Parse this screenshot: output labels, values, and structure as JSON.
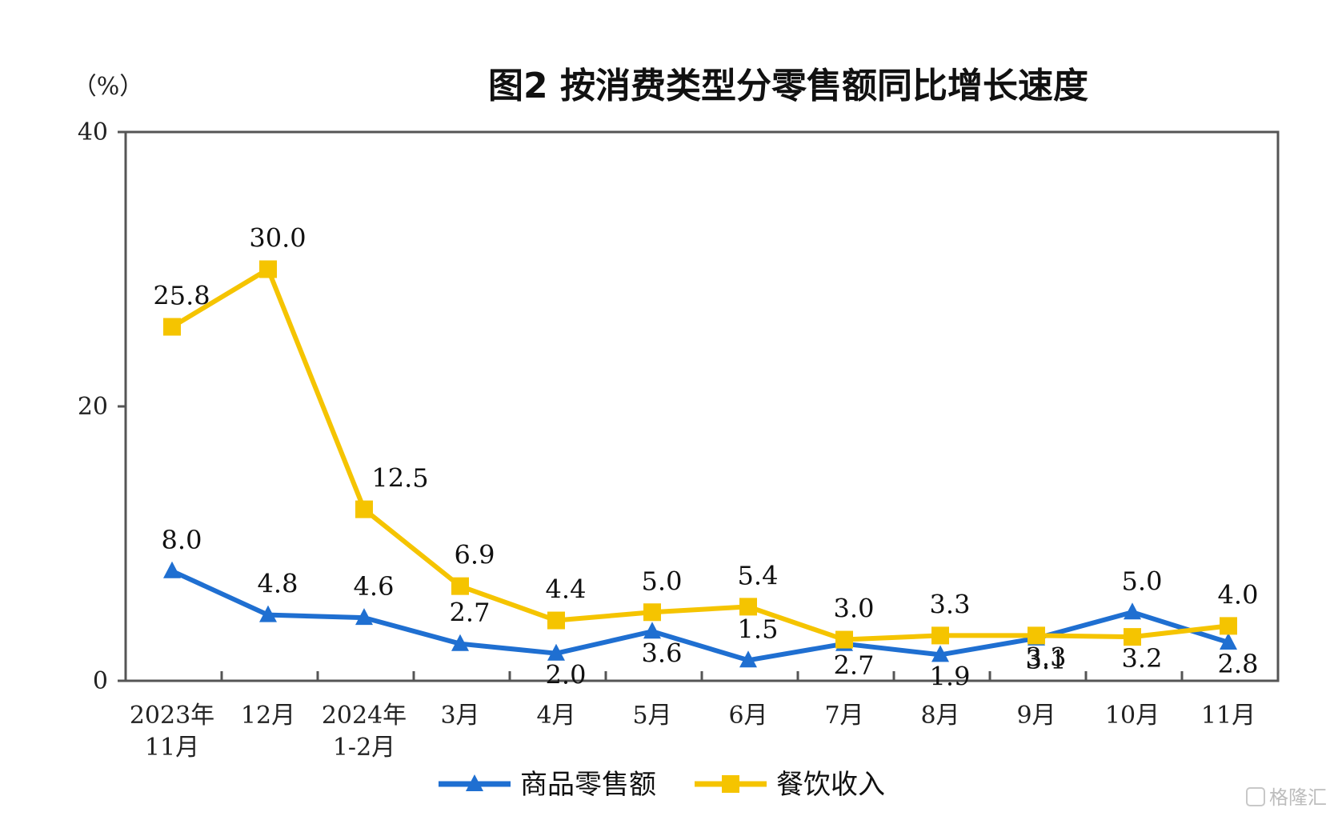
{
  "chart_data": {
    "type": "line",
    "title": "图2 按消费类型分零售额同比增长速度",
    "ylabel": "（%）",
    "ylim": [
      0,
      40
    ],
    "yticks": [
      "0",
      "20",
      "40"
    ],
    "categories": [
      [
        "2023年",
        "11月"
      ],
      [
        "12月"
      ],
      [
        "2024年",
        "1-2月"
      ],
      [
        "3月"
      ],
      [
        "4月"
      ],
      [
        "5月"
      ],
      [
        "6月"
      ],
      [
        "7月"
      ],
      [
        "8月"
      ],
      [
        "9月"
      ],
      [
        "10月"
      ],
      [
        "11月"
      ]
    ],
    "series": [
      {
        "name": "商品零售额",
        "color": "#1f6fd1",
        "marker": "triangle",
        "values": [
          8.0,
          4.8,
          4.6,
          2.7,
          2.0,
          3.6,
          1.5,
          2.7,
          1.9,
          3.1,
          5.0,
          2.8
        ],
        "labels": [
          "8.0",
          "4.8",
          "4.6",
          "2.7",
          "2.0",
          "3.6",
          "1.5",
          "2.7",
          "1.9",
          "3.1",
          "5.0",
          "2.8"
        ]
      },
      {
        "name": "餐饮收入",
        "color": "#f5c400",
        "marker": "square",
        "values": [
          25.8,
          30.0,
          12.5,
          6.9,
          4.4,
          5.0,
          5.4,
          3.0,
          3.3,
          3.3,
          3.2,
          4.0
        ],
        "labels": [
          "25.8",
          "30.0",
          "12.5",
          "6.9",
          "4.4",
          "5.0",
          "5.4",
          "3.0",
          "3.3",
          "3.3",
          "3.2",
          "4.0"
        ]
      }
    ],
    "legend_position": "bottom-center",
    "grid": false
  },
  "watermark": "格隆汇"
}
